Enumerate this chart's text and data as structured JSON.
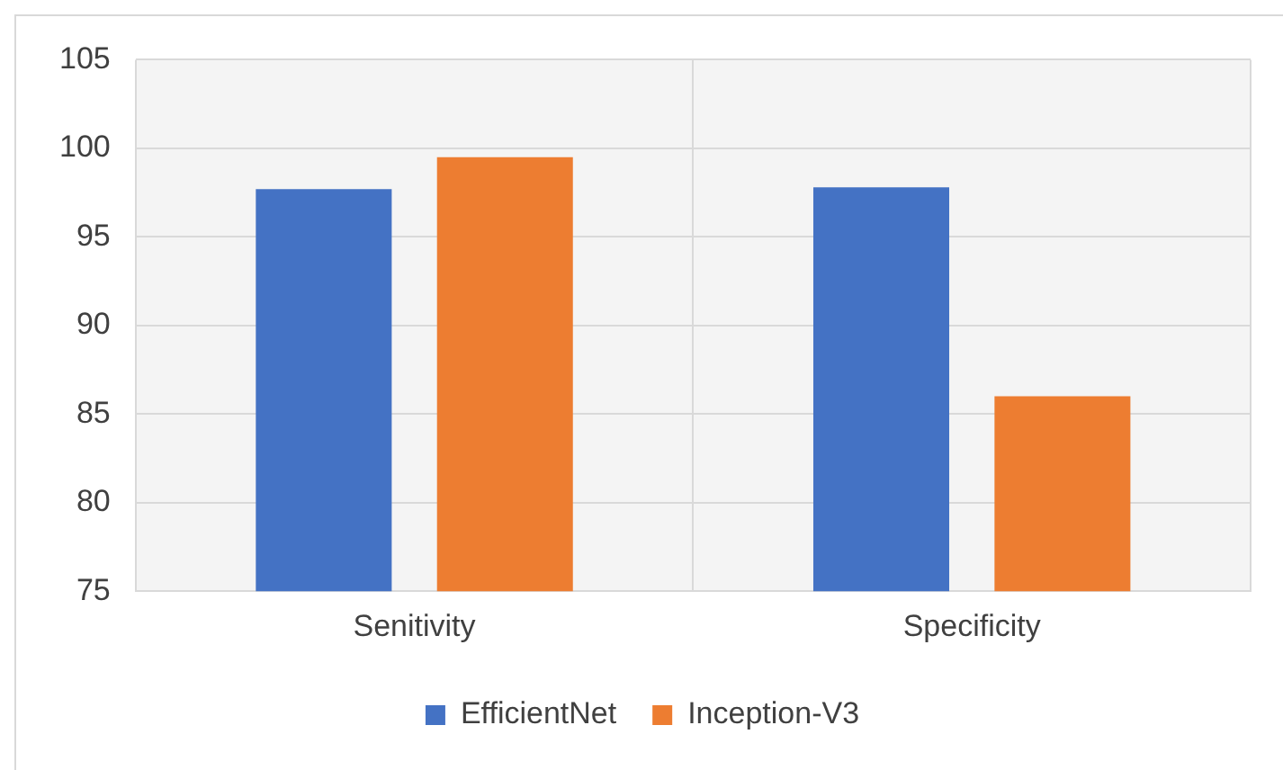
{
  "chart_data": {
    "type": "bar",
    "categories": [
      "Senitivity",
      "Specificity"
    ],
    "series": [
      {
        "name": "EfficientNet",
        "color": "#4472c4",
        "values": [
          97.7,
          97.8
        ]
      },
      {
        "name": "Inception-V3",
        "color": "#ed7d31",
        "values": [
          99.5,
          86.0
        ]
      }
    ],
    "ylim": [
      75,
      105
    ],
    "yticks": [
      75,
      80,
      85,
      90,
      95,
      100,
      105
    ],
    "grid": true,
    "legend": "bottom"
  }
}
